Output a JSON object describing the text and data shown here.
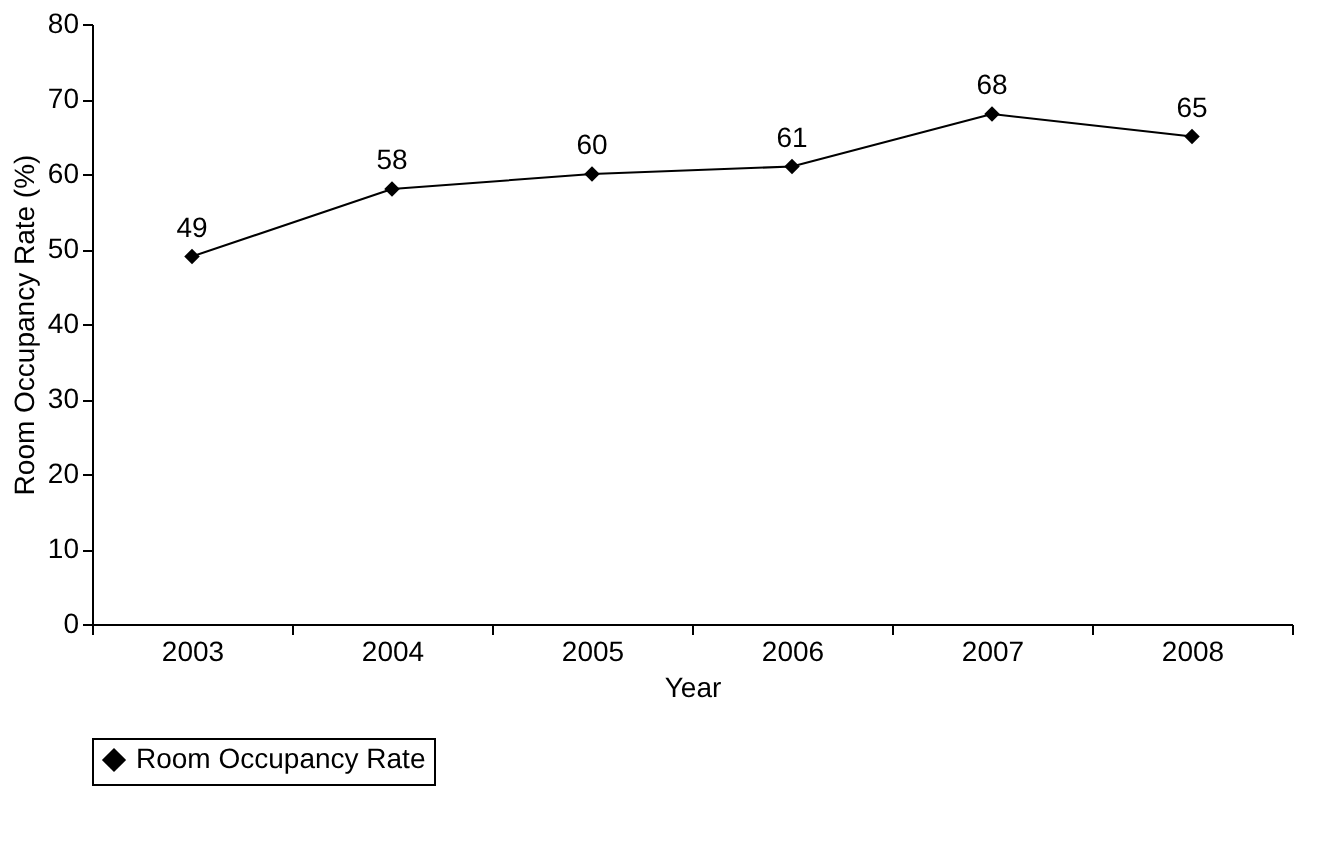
{
  "chart_data": {
    "type": "line",
    "xlabel": "Year",
    "ylabel": "Room Occupancy Rate (%)",
    "categories": [
      "2003",
      "2004",
      "2005",
      "2006",
      "2007",
      "2008"
    ],
    "series": [
      {
        "name": "Room Occupancy Rate",
        "color": "#000000",
        "values": [
          49,
          58,
          60,
          61,
          68,
          65
        ]
      }
    ],
    "ylim": [
      0,
      80
    ],
    "yticks": [
      0,
      10,
      20,
      30,
      40,
      50,
      60,
      70,
      80
    ],
    "grid": false,
    "legend": "bottom",
    "marker": "diamond",
    "line_style": "solid",
    "data_labels": true
  }
}
